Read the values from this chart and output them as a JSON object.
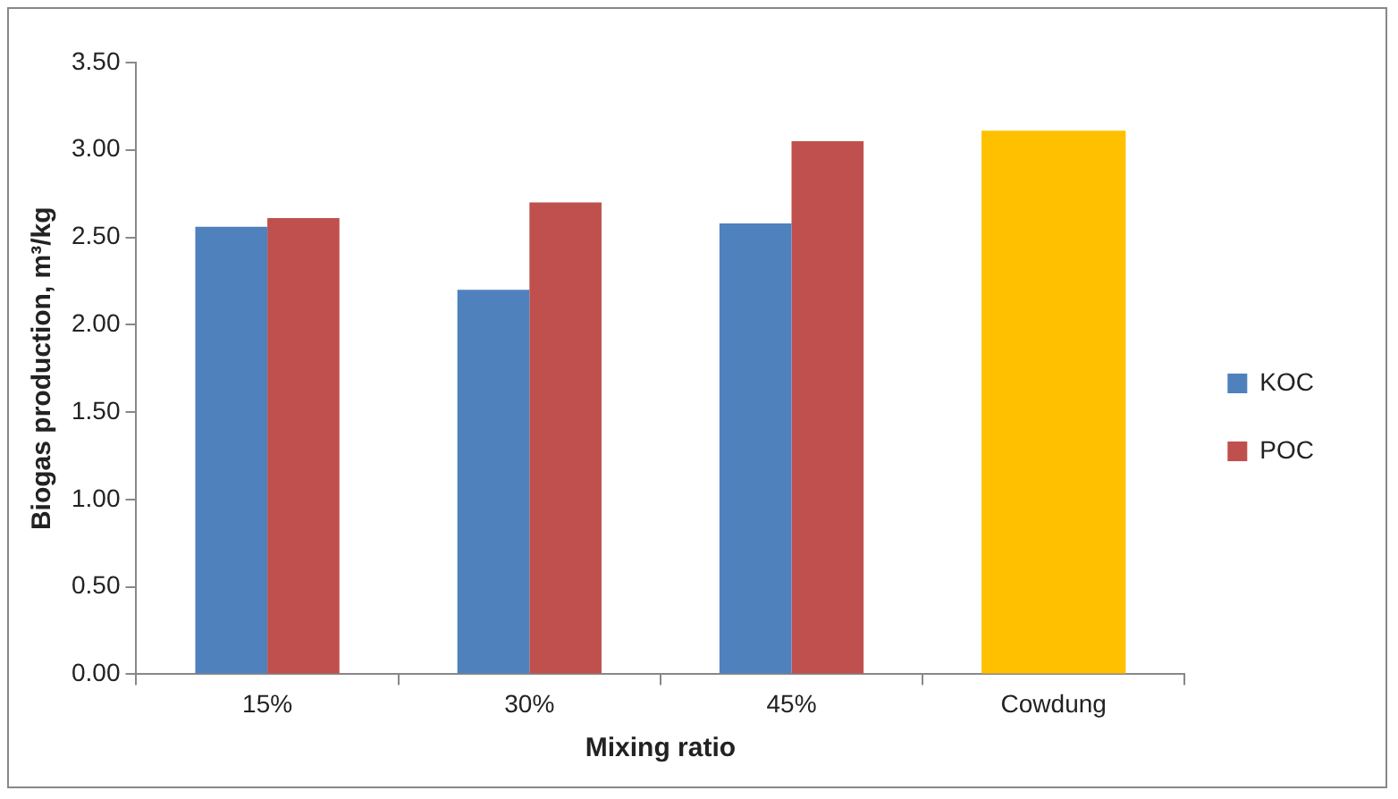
{
  "chart_data": {
    "type": "bar",
    "xlabel": "Mixing ratio",
    "ylabel": "Biogas production, m³/kg",
    "categories": [
      "15%",
      "30%",
      "45%",
      "Cowdung"
    ],
    "series": [
      {
        "name": "KOC",
        "color": "#4f81bd",
        "values": [
          2.56,
          2.2,
          2.58,
          null
        ]
      },
      {
        "name": "POC",
        "color": "#c0504d",
        "values": [
          2.61,
          2.7,
          3.05,
          null
        ]
      },
      {
        "color": "#ffc000",
        "values": [
          null,
          null,
          null,
          3.11
        ]
      }
    ],
    "ylim": [
      0,
      3.5
    ],
    "yticks": [
      {
        "value": 0,
        "label": "0.00"
      },
      {
        "value": 0.5,
        "label": "0.50"
      },
      {
        "value": 1,
        "label": "1.00"
      },
      {
        "value": 1.5,
        "label": "1.50"
      },
      {
        "value": 2,
        "label": "2.00"
      },
      {
        "value": 2.5,
        "label": "2.50"
      },
      {
        "value": 3,
        "label": "3.00"
      },
      {
        "value": 3.5,
        "label": "3.50"
      }
    ],
    "grid": false,
    "legend": "right"
  }
}
